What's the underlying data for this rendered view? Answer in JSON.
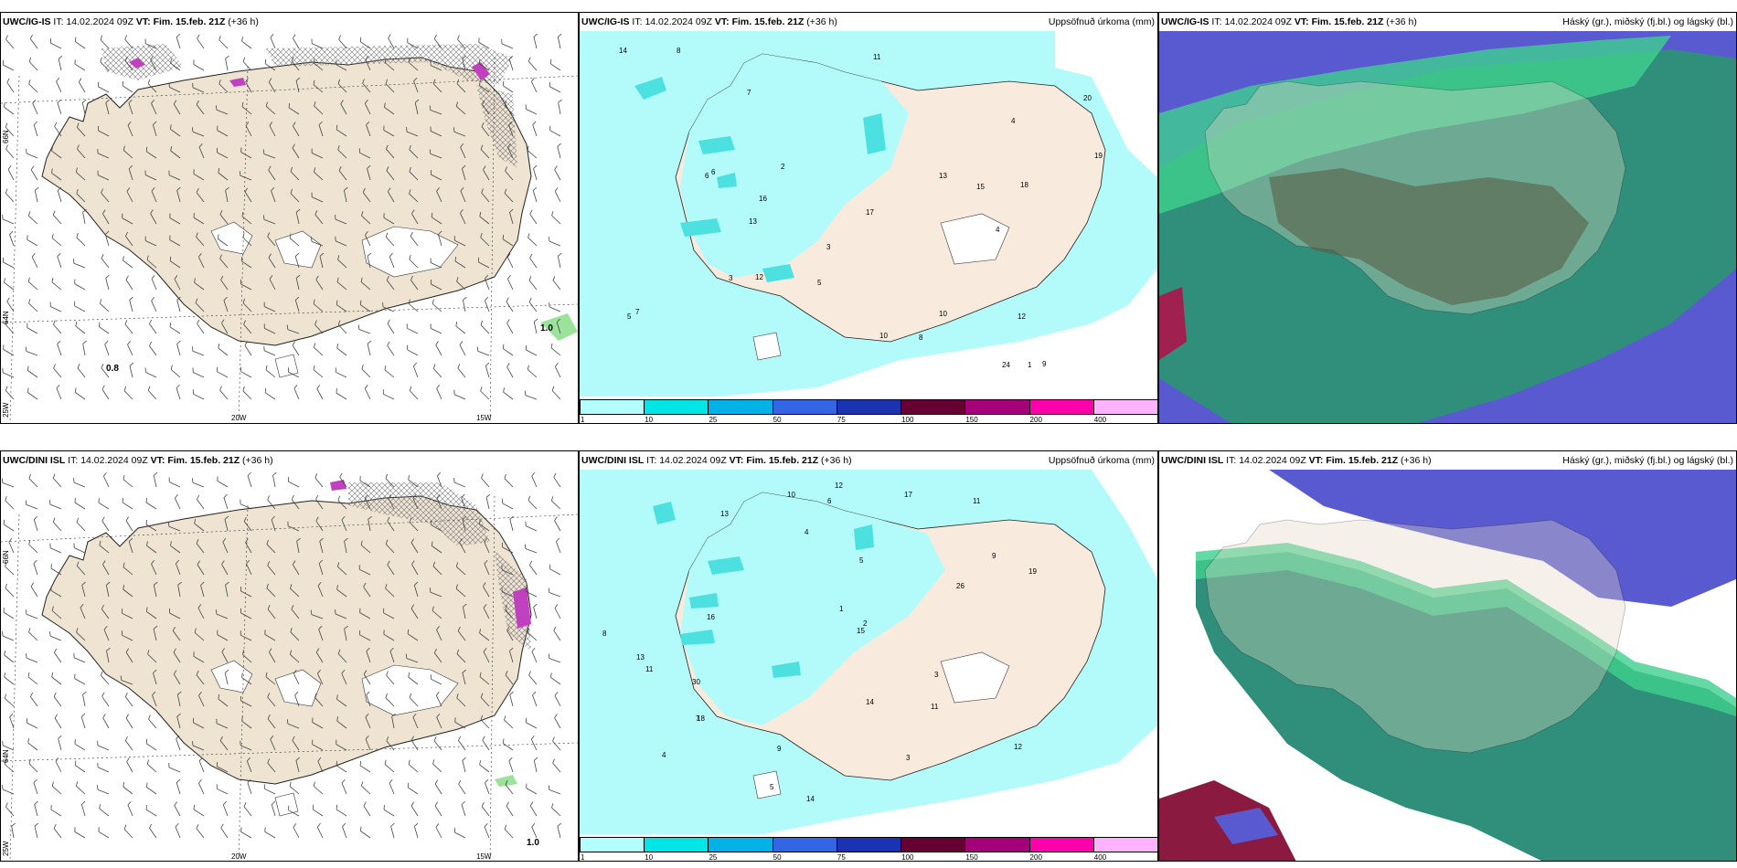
{
  "rows": [
    {
      "model": "UWC/IG-IS",
      "panels": [
        {
          "prefix": "UWC/IG-IS",
          "it_label": "IT:",
          "it": "14.02.2024 09Z",
          "vt_label": "VT:",
          "vt": "Fim. 15.feb. 21Z",
          "lead": "(+36 h)",
          "right": ""
        },
        {
          "prefix": "UWC/IG-IS",
          "it_label": "IT:",
          "it": "14.02.2024 09Z",
          "vt_label": "VT:",
          "vt": "Fim. 15.feb. 21Z",
          "lead": "(+36 h)",
          "right": "Uppsöfnuð úrkoma (mm)"
        },
        {
          "prefix": "UWC/IG-IS",
          "it_label": "IT:",
          "it": "14.02.2024 09Z",
          "vt_label": "VT:",
          "vt": "Fim. 15.feb. 21Z",
          "lead": "(+36 h)",
          "right": "Háský (gr.), miðský (fj.bl.) og lágský (bl.)"
        }
      ],
      "contour_labels": [
        "1.0",
        "0.8"
      ],
      "precip_values": [
        "3",
        "6",
        "8",
        "4",
        "9",
        "7",
        "5",
        "13",
        "12",
        "15",
        "18",
        "11",
        "14",
        "24",
        "16",
        "10",
        "17",
        "19",
        "20",
        "2",
        "1",
        "6",
        "8",
        "3",
        "12",
        "13",
        "10",
        "7",
        "4",
        "5"
      ]
    },
    {
      "model": "UWC/DINI ISL",
      "panels": [
        {
          "prefix": "UWC/DINI ISL",
          "it_label": "IT:",
          "it": "14.02.2024 09Z",
          "vt_label": "VT:",
          "vt": "Fim. 15.feb. 21Z",
          "lead": "(+36 h)",
          "right": ""
        },
        {
          "prefix": "UWC/DINI ISL",
          "it_label": "IT:",
          "it": "14.02.2024 09Z",
          "vt_label": "VT:",
          "vt": "Fim. 15.feb. 21Z",
          "lead": "(+36 h)",
          "right": "Uppsöfnuð úrkoma (mm)"
        },
        {
          "prefix": "UWC/DINI ISL",
          "it_label": "IT:",
          "it": "14.02.2024 09Z",
          "vt_label": "VT:",
          "vt": "Fim. 15.feb. 21Z",
          "lead": "(+36 h)",
          "right": "Háský (gr.), miðský (fj.bl.) og lágský (bl.)"
        }
      ],
      "contour_labels": [
        "1.0"
      ],
      "precip_values": [
        "4",
        "11",
        "13",
        "9",
        "14",
        "16",
        "30",
        "18",
        "19",
        "26",
        "13",
        "12",
        "11",
        "15",
        "14",
        "10",
        "12",
        "8",
        "7",
        "5",
        "3",
        "6",
        "4",
        "2",
        "1",
        "9",
        "11",
        "17",
        "5",
        "3"
      ]
    }
  ],
  "axes": {
    "lat_labels": [
      "66N",
      "64N"
    ],
    "lon_labels": [
      "25W",
      "20W",
      "15W"
    ]
  },
  "colorbar": {
    "ticks": [
      "1",
      "10",
      "25",
      "50",
      "75",
      "100",
      "150",
      "200",
      "400"
    ],
    "colors": [
      "#b3ffff",
      "#00e5e5",
      "#00b2e5",
      "#3366e5",
      "#1a33b2",
      "#660033",
      "#a3007a",
      "#ff00aa",
      "#ffb2ff"
    ]
  },
  "colors": {
    "land": "#efe3d2",
    "precip_light": "#b3fbfb",
    "precip_mid": "#4ce0e0",
    "cloud_high": "#e8dccc",
    "cloud_mid": "#2e8c6a",
    "cloud_low": "#5050c0",
    "cloud_green": "#40d090",
    "snow_hatch": "#888888",
    "magenta": "#c040c0"
  }
}
